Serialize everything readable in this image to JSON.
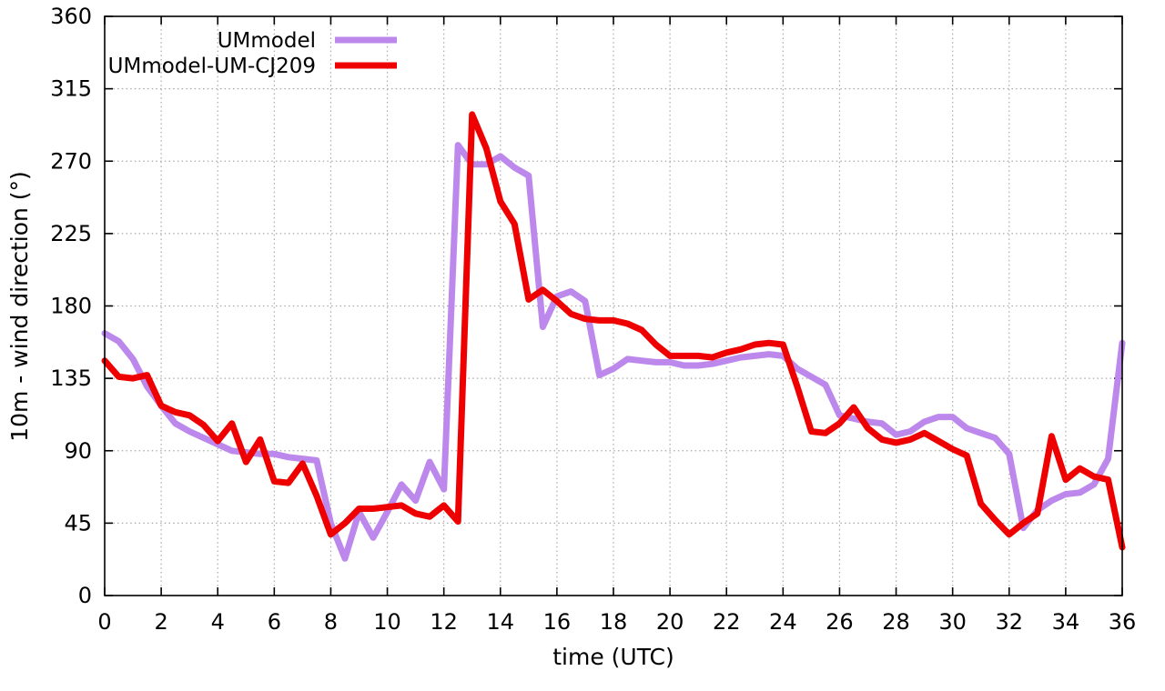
{
  "chart_data": {
    "type": "line",
    "title": "",
    "xlabel": "time (UTC)",
    "ylabel": "10m - wind direction (°)",
    "xlim": [
      0,
      36
    ],
    "ylim": [
      0,
      360
    ],
    "x_ticks": [
      0,
      2,
      4,
      6,
      8,
      10,
      12,
      14,
      16,
      18,
      20,
      22,
      24,
      26,
      28,
      30,
      32,
      34,
      36
    ],
    "y_ticks": [
      0,
      45,
      90,
      135,
      180,
      225,
      270,
      315,
      360
    ],
    "grid": true,
    "legend_position": "top-left-inside",
    "x_start": 0,
    "x_step": 0.5,
    "series": [
      {
        "name": "UMmodel",
        "color": "#bd88ec",
        "values": [
          163,
          158,
          147,
          130,
          118,
          107,
          102,
          98,
          94,
          90,
          89,
          88,
          88,
          86,
          85,
          84,
          45,
          23,
          52,
          36,
          52,
          69,
          59,
          83,
          66,
          280,
          268,
          268,
          273,
          266,
          261,
          167,
          186,
          189,
          183,
          137,
          141,
          147,
          146,
          145,
          145,
          143,
          143,
          144,
          146,
          148,
          149,
          150,
          149,
          141,
          136,
          131,
          112,
          110,
          108,
          107,
          100,
          102,
          108,
          111,
          111,
          104,
          101,
          98,
          88,
          42,
          53,
          59,
          63,
          64,
          69,
          85,
          157
        ]
      },
      {
        "name": "UMmodel-UM-CJ209",
        "color": "#ef0000",
        "values": [
          146,
          136,
          135,
          137,
          118,
          114,
          112,
          106,
          96,
          107,
          83,
          97,
          71,
          70,
          82,
          62,
          38,
          45,
          54,
          54,
          55,
          56,
          51,
          49,
          56,
          46,
          299,
          278,
          245,
          231,
          184,
          190,
          183,
          175,
          172,
          171,
          171,
          169,
          165,
          156,
          149,
          149,
          149,
          148,
          151,
          153,
          156,
          157,
          156,
          130,
          102,
          101,
          107,
          117,
          104,
          97,
          95,
          97,
          101,
          96,
          91,
          87,
          57,
          47,
          38,
          45,
          51,
          99,
          72,
          79,
          74,
          72,
          30
        ]
      }
    ]
  },
  "colors": {
    "background": "#ffffff",
    "axis": "#000000",
    "grid": "#a9a9a9",
    "text": "#000000"
  }
}
